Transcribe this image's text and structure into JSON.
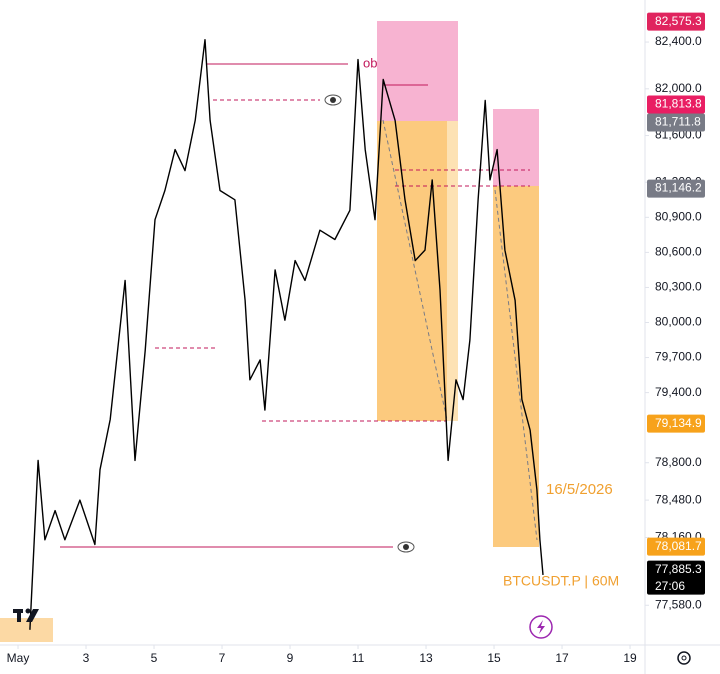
{
  "chart_data": {
    "type": "line",
    "color": "#000000",
    "x": [
      1.35,
      1.59,
      1.79,
      2.09,
      2.38,
      2.82,
      3.26,
      3.41,
      3.71,
      4.15,
      4.44,
      4.74,
      5.03,
      5.32,
      5.62,
      5.91,
      6.21,
      6.5,
      6.65,
      6.94,
      7.38,
      7.68,
      7.82,
      8.12,
      8.26,
      8.56,
      8.85,
      9.15,
      9.44,
      9.88,
      10.32,
      10.76,
      11.0,
      11.21,
      11.5,
      11.74,
      12.09,
      12.38,
      12.68,
      12.97,
      13.18,
      13.41,
      13.65,
      13.88,
      14.09,
      14.29,
      14.53,
      14.74,
      14.88,
      15.09,
      15.32,
      15.62,
      15.82,
      16.06,
      16.26,
      16.35,
      16.44
    ],
    "values": [
      77370,
      78820,
      78140,
      78390,
      78140,
      78480,
      78100,
      78740,
      79170,
      80360,
      78820,
      79760,
      80880,
      81130,
      81480,
      81300,
      81730,
      82420,
      81730,
      81130,
      81050,
      80190,
      79510,
      79680,
      79250,
      80450,
      80020,
      80530,
      80360,
      80790,
      80710,
      80960,
      82250,
      81480,
      80880,
      82080,
      81730,
      81050,
      80530,
      80620,
      81220,
      80280,
      78820,
      79510,
      79340,
      79850,
      81050,
      81900,
      81220,
      81480,
      80620,
      80190,
      79340,
      79080,
      78570,
      78140,
      77840
    ],
    "xlim": [
      0.47,
      19.44
    ],
    "xticks": [
      {
        "value": 1,
        "label": "May"
      },
      3,
      5,
      7,
      9,
      11,
      13,
      15,
      17,
      19
    ],
    "ylim": [
      77240,
      82760
    ],
    "yticks": [
      {
        "value": 82400,
        "label": "82,400.0"
      },
      {
        "value": 82000,
        "label": "82,000.0"
      },
      {
        "value": 81600,
        "label": "81,600.0"
      },
      {
        "value": 81200,
        "label": "81,200.0"
      },
      {
        "value": 80900,
        "label": "80,900.0"
      },
      {
        "value": 80600,
        "label": "80,600.0"
      },
      {
        "value": 80300,
        "label": "80,300.0"
      },
      {
        "value": 80000,
        "label": "80,000.0"
      },
      {
        "value": 79700,
        "label": "79,700.0"
      },
      {
        "value": 79400,
        "label": "79,400.0"
      },
      {
        "value": 78800,
        "label": "78,800.0"
      },
      {
        "value": 78480,
        "label": "78,480.0"
      },
      {
        "value": 78160,
        "label": "78,160.0"
      },
      {
        "value": 77580,
        "label": "77,580.0"
      }
    ],
    "price_labels": [
      {
        "value": 82575.3,
        "label": "82,575.3",
        "color": "#e0245e"
      },
      {
        "value": 81813.8,
        "label": "81,813.8",
        "color": "#e91e63"
      },
      {
        "value": 81711.8,
        "label": "81,711.8",
        "color": "#787b86"
      },
      {
        "value": 81146.2,
        "label": "81,146.2",
        "color": "#787b86"
      },
      {
        "value": 79134.9,
        "label": "79,134.9",
        "color": "#f7a21b"
      },
      {
        "value": 78081.7,
        "label": "78,081.7",
        "color": "#f7a21b"
      },
      {
        "value": 77885.3,
        "label": "77,885.3",
        "color": "#000000"
      }
    ],
    "annotations": {
      "ob": "ob",
      "date": "16/5/2026",
      "symbol": "BTCUSDT.P | 60M",
      "countdown": "27:06"
    }
  }
}
